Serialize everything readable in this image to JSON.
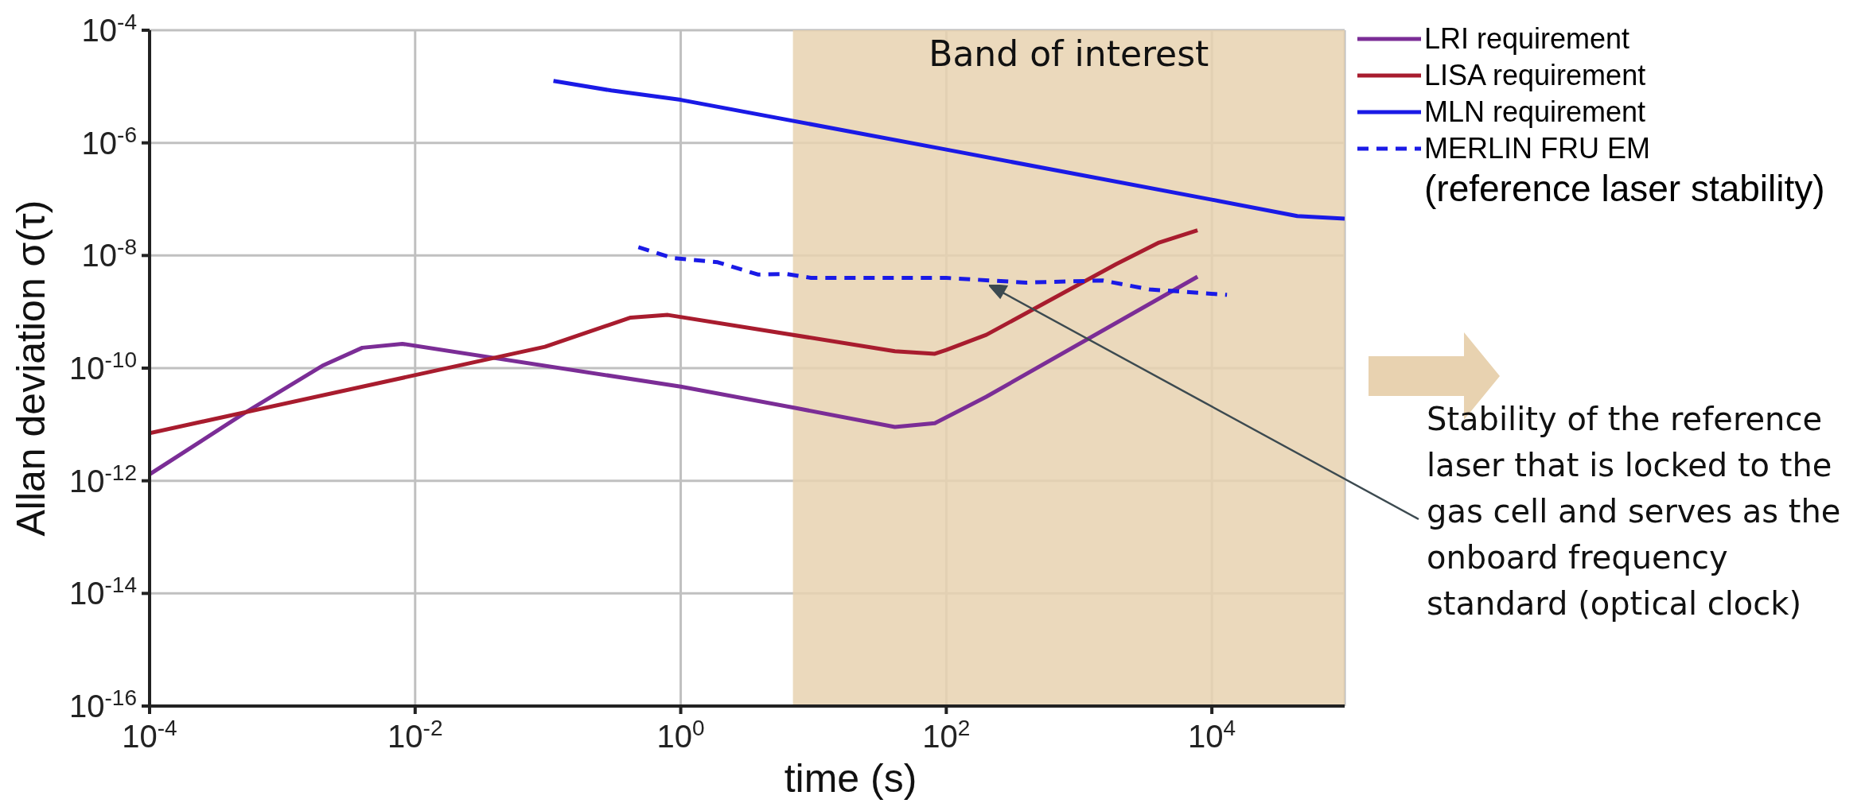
{
  "chart_data": {
    "type": "line",
    "xlabel": "time (s)",
    "ylabel": "Allan deviation σ(τ)",
    "log": "xy",
    "grid": true,
    "legend": "right",
    "xlim": [
      0.0001,
      100000
    ],
    "ylim": [
      1e-16,
      0.0001
    ],
    "xticks": [
      {
        "value": 0.0001,
        "label": "10$^{-4}$"
      },
      {
        "value": 0.01,
        "label": "10$^{-2}$"
      },
      {
        "value": 1,
        "label": "10$^{0}$"
      },
      {
        "value": 100,
        "label": "10$^{2}$"
      },
      {
        "value": 10000,
        "label": "10$^{4}$"
      }
    ],
    "yticks": [
      {
        "value": 1e-16,
        "label": "10$^{-16}$"
      },
      {
        "value": 1e-14,
        "label": "10$^{-14}$"
      },
      {
        "value": 1e-12,
        "label": "10$^{-12}$"
      },
      {
        "value": 1e-10,
        "label": "10$^{-10}$"
      },
      {
        "value": 1e-08,
        "label": "10$^{-8}$"
      },
      {
        "value": 1e-06,
        "label": "10$^{-6}$"
      },
      {
        "value": 0.0001,
        "label": "10$^{-4}$"
      }
    ],
    "series": [
      {
        "name": "LRI requirement",
        "color": "#7b2d96",
        "line_style": "solid",
        "x": [
          0.0001,
          0.00052,
          0.002,
          0.004,
          0.008,
          1,
          7,
          41,
          82,
          200,
          7800
        ],
        "values": [
          1.3e-12,
          1.6e-11,
          1.1e-10,
          2.3e-10,
          2.7e-10,
          4.7e-11,
          2e-11,
          9e-12,
          1.05e-11,
          3.1e-11,
          4.2e-09
        ]
      },
      {
        "name": "LISA requirement",
        "color": "#a81c2e",
        "line_style": "solid",
        "x": [
          0.0001,
          0.095,
          0.42,
          0.8,
          41,
          82,
          100,
          200,
          1900,
          4000,
          7800
        ],
        "values": [
          7e-12,
          2.4e-10,
          7.9e-10,
          8.8e-10,
          2e-10,
          1.8e-10,
          2.1e-10,
          3.9e-10,
          7e-09,
          1.7e-08,
          2.8e-08
        ]
      },
      {
        "name": "MLN requirement",
        "color": "#1a1ae6",
        "line_style": "solid",
        "x": [
          0.11,
          0.3,
          1,
          100,
          10000,
          44000,
          100000
        ],
        "values": [
          1.26e-05,
          8.5e-06,
          5.8e-06,
          7.6e-07,
          9.8e-08,
          5e-08,
          4.5e-08
        ]
      },
      {
        "name": "MERLIN FRU EM",
        "color": "#1a1ae6",
        "line_style": "dashed",
        "x": [
          0.48,
          0.87,
          1.9,
          3.8,
          6.3,
          9.6,
          100,
          400,
          1500,
          3400,
          13000
        ],
        "values": [
          1.4e-08,
          9e-09,
          7.6e-09,
          4.6e-09,
          4.7e-09,
          4e-09,
          4e-09,
          3.3e-09,
          3.6e-09,
          2.5e-09,
          2e-09
        ]
      }
    ],
    "bands": [
      {
        "axis": "x",
        "from": 7,
        "to": 100000,
        "label": "Band of interest",
        "color": "#e8d2b0"
      }
    ],
    "annotations": [
      "(reference laser stability)",
      "Stability of the reference laser that is locked to the gas cell and serves as the onboard frequency standard (optical clock)"
    ]
  }
}
